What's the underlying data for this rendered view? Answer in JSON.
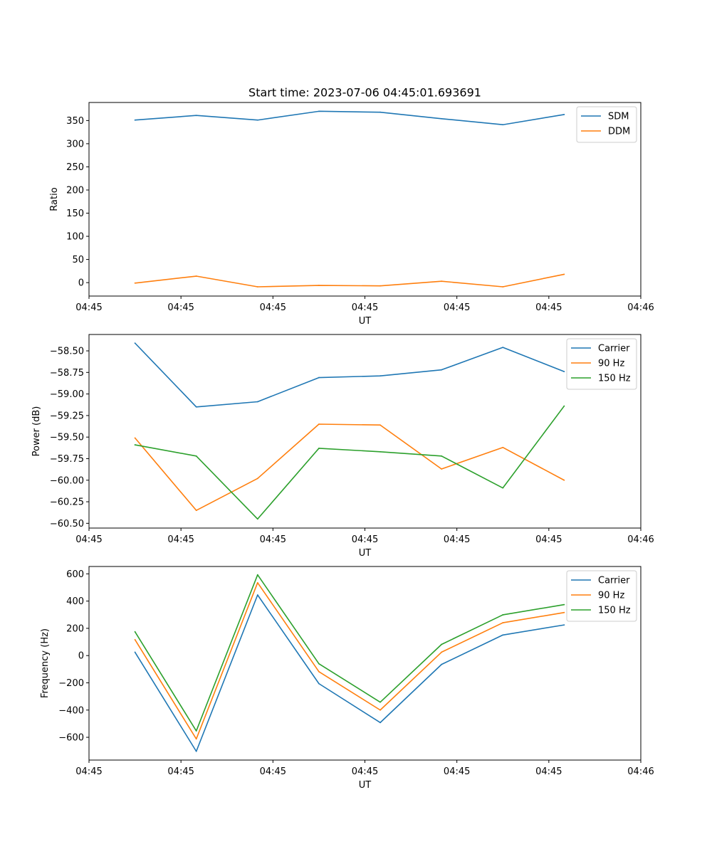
{
  "figure_title": "Start time: 2023-07-06 04:45:01.693691",
  "chart_data": [
    {
      "type": "line",
      "title": "Start time: 2023-07-06 04:45:01.693691",
      "xlabel": "UT",
      "ylabel": "Ratio",
      "x": [
        1,
        2,
        3,
        4,
        5,
        6,
        7,
        8
      ],
      "xlim": [
        0.25,
        9.25
      ],
      "xticks": [
        0.25,
        1.75,
        3.25,
        4.75,
        6.25,
        7.75,
        9.25
      ],
      "xtick_labels": [
        "04:45",
        "04:45",
        "04:45",
        "04:45",
        "04:45",
        "04:45",
        "04:46"
      ],
      "ylim": [
        -29,
        389
      ],
      "yticks": [
        0,
        50,
        100,
        150,
        200,
        250,
        300,
        350
      ],
      "ytick_labels": [
        "0",
        "50",
        "100",
        "150",
        "200",
        "250",
        "300",
        "350"
      ],
      "legend": "top-right",
      "series": [
        {
          "name": "SDM",
          "color": "#1f77b4",
          "values": [
            351,
            361,
            351,
            370,
            368,
            354,
            341,
            363
          ]
        },
        {
          "name": "DDM",
          "color": "#ff7f0e",
          "values": [
            -1,
            14,
            -9,
            -6,
            -7,
            3,
            -9,
            18
          ]
        }
      ]
    },
    {
      "type": "line",
      "title": "",
      "xlabel": "UT",
      "ylabel": "Power (dB)",
      "x": [
        1,
        2,
        3,
        4,
        5,
        6,
        7,
        8
      ],
      "xlim": [
        0.25,
        9.25
      ],
      "xticks": [
        0.25,
        1.75,
        3.25,
        4.75,
        6.25,
        7.75,
        9.25
      ],
      "xtick_labels": [
        "04:45",
        "04:45",
        "04:45",
        "04:45",
        "04:45",
        "04:45",
        "04:46"
      ],
      "ylim": [
        -60.555,
        -58.31
      ],
      "yticks": [
        -60.5,
        -60.25,
        -60.0,
        -59.75,
        -59.5,
        -59.25,
        -59.0,
        -58.75,
        -58.5
      ],
      "ytick_labels": [
        "−60.50",
        "−60.25",
        "−60.00",
        "−59.75",
        "−59.50",
        "−59.25",
        "−59.00",
        "−58.75",
        "−58.50"
      ],
      "legend": "top-right",
      "series": [
        {
          "name": "Carrier",
          "color": "#1f77b4",
          "values": [
            -58.41,
            -59.15,
            -59.09,
            -58.81,
            -58.79,
            -58.72,
            -58.46,
            -58.74
          ]
        },
        {
          "name": "90 Hz",
          "color": "#ff7f0e",
          "values": [
            -59.51,
            -60.35,
            -59.98,
            -59.35,
            -59.36,
            -59.87,
            -59.62,
            -60.0
          ]
        },
        {
          "name": "150 Hz",
          "color": "#2ca02c",
          "values": [
            -59.59,
            -59.72,
            -60.45,
            -59.63,
            -59.67,
            -59.72,
            -60.09,
            -59.14
          ]
        }
      ]
    },
    {
      "type": "line",
      "title": "",
      "xlabel": "UT",
      "ylabel": "Frequency (Hz)",
      "x": [
        1,
        2,
        3,
        4,
        5,
        6,
        7,
        8
      ],
      "xlim": [
        0.25,
        9.25
      ],
      "xticks": [
        0.25,
        1.75,
        3.25,
        4.75,
        6.25,
        7.75,
        9.25
      ],
      "xtick_labels": [
        "04:45",
        "04:45",
        "04:45",
        "04:45",
        "04:45",
        "04:45",
        "04:46"
      ],
      "ylim": [
        -767,
        654
      ],
      "yticks": [
        -600,
        -400,
        -200,
        0,
        200,
        400,
        600
      ],
      "ytick_labels": [
        "−600",
        "−400",
        "−200",
        "0",
        "200",
        "400",
        "600"
      ],
      "legend": "top-right",
      "series": [
        {
          "name": "Carrier",
          "color": "#1f77b4",
          "values": [
            25,
            -703,
            445,
            -206,
            -492,
            -65,
            151,
            225
          ]
        },
        {
          "name": "90 Hz",
          "color": "#ff7f0e",
          "values": [
            117,
            -612,
            535,
            -118,
            -400,
            25,
            241,
            316
          ]
        },
        {
          "name": "150 Hz",
          "color": "#2ca02c",
          "values": [
            175,
            -553,
            593,
            -60,
            -342,
            82,
            299,
            374
          ]
        }
      ]
    }
  ]
}
